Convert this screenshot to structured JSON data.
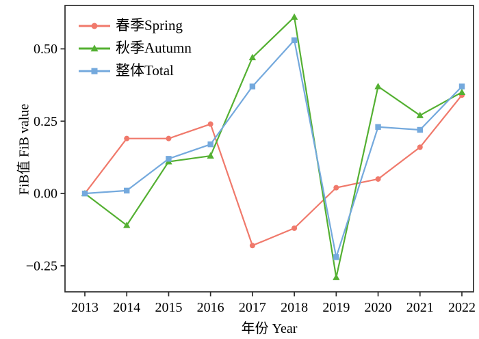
{
  "chart_data": {
    "type": "line",
    "title": "",
    "x": [
      2013,
      2014,
      2015,
      2016,
      2017,
      2018,
      2019,
      2020,
      2021,
      2022
    ],
    "xlabel": "年份 Year",
    "ylabel": "FiB值 FiB value",
    "ylim": [
      -0.34,
      0.65
    ],
    "yticks": [
      {
        "v": 0.5,
        "label": "0.50"
      },
      {
        "v": 0.25,
        "label": "0.25"
      },
      {
        "v": 0.0,
        "label": "0.00"
      },
      {
        "v": -0.25,
        "label": "−0.25"
      }
    ],
    "grid": false,
    "legend_position": "top-left-inside",
    "axis_color": "#2b2b2b",
    "text_color": "#000000",
    "series": [
      {
        "name": "春季Spring",
        "marker": "circle",
        "color": "#f0796b",
        "values": [
          0.0,
          0.19,
          0.19,
          0.24,
          -0.18,
          -0.12,
          0.02,
          0.05,
          0.16,
          0.34
        ]
      },
      {
        "name": "秋季Autumn",
        "marker": "triangle",
        "color": "#54b032",
        "values": [
          0.0,
          -0.11,
          0.11,
          0.13,
          0.47,
          0.61,
          -0.29,
          0.37,
          0.27,
          0.35
        ]
      },
      {
        "name": "整体Total",
        "marker": "square",
        "color": "#74a9dd",
        "values": [
          0.0,
          0.01,
          0.12,
          0.17,
          0.37,
          0.53,
          -0.22,
          0.23,
          0.22,
          0.37
        ]
      }
    ]
  }
}
